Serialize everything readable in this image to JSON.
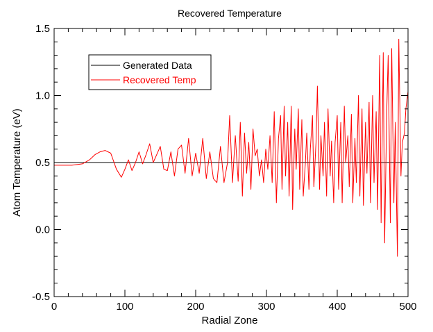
{
  "chart_data": {
    "type": "line",
    "title": "Recovered Temperature",
    "xlabel": "Radial Zone",
    "ylabel": "Atom Temperature (eV)",
    "xlim": [
      0,
      500
    ],
    "ylim": [
      -0.5,
      1.5
    ],
    "x_ticks": [
      0,
      100,
      200,
      300,
      400,
      500
    ],
    "x_tick_labels": [
      "0",
      "100",
      "200",
      "300",
      "400",
      "500"
    ],
    "y_ticks": [
      -0.5,
      0.0,
      0.5,
      1.0,
      1.5
    ],
    "y_tick_labels": [
      "-0.5",
      "0.0",
      "0.5",
      "1.0",
      "1.5"
    ],
    "grid": false,
    "legend_position": "top-left",
    "series": [
      {
        "name": "Generated Data",
        "color": "#000000",
        "x": [
          0,
          500
        ],
        "y": [
          0.5,
          0.5
        ]
      },
      {
        "name": "Recovered Temp",
        "color": "#ff0000",
        "x": [
          0,
          25,
          40,
          50,
          58,
          65,
          72,
          80,
          88,
          95,
          100,
          105,
          110,
          115,
          120,
          125,
          130,
          135,
          140,
          145,
          150,
          155,
          160,
          165,
          170,
          175,
          180,
          185,
          190,
          195,
          200,
          205,
          210,
          215,
          220,
          225,
          230,
          235,
          240,
          245,
          248,
          252,
          256,
          260,
          263,
          266,
          269,
          272,
          275,
          278,
          281,
          284,
          287,
          290,
          293,
          296,
          299,
          302,
          305,
          308,
          311,
          314,
          317,
          320,
          322,
          325,
          327,
          330,
          332,
          335,
          337,
          340,
          342,
          345,
          347,
          350,
          352,
          355,
          357,
          360,
          362,
          365,
          367,
          370,
          372,
          375,
          377,
          380,
          382,
          385,
          387,
          390,
          392,
          395,
          397,
          400,
          402,
          405,
          407,
          410,
          412,
          415,
          417,
          420,
          422,
          425,
          427,
          430,
          432,
          435,
          437,
          440,
          442,
          445,
          447,
          450,
          452,
          455,
          457,
          460,
          462,
          465,
          467,
          470,
          472,
          475,
          477,
          480,
          482,
          485,
          487,
          490,
          492,
          495,
          497,
          500
        ],
        "y": [
          0.48,
          0.48,
          0.49,
          0.52,
          0.56,
          0.58,
          0.59,
          0.57,
          0.45,
          0.39,
          0.45,
          0.52,
          0.44,
          0.5,
          0.58,
          0.49,
          0.56,
          0.64,
          0.5,
          0.56,
          0.62,
          0.45,
          0.44,
          0.58,
          0.4,
          0.6,
          0.63,
          0.42,
          0.68,
          0.4,
          0.57,
          0.42,
          0.68,
          0.38,
          0.58,
          0.38,
          0.35,
          0.62,
          0.35,
          0.5,
          0.85,
          0.35,
          0.7,
          0.36,
          0.8,
          0.25,
          0.72,
          0.42,
          0.65,
          0.3,
          0.75,
          0.55,
          0.6,
          0.4,
          0.52,
          0.35,
          0.6,
          0.45,
          0.7,
          0.35,
          0.88,
          0.2,
          0.68,
          0.85,
          0.3,
          0.92,
          0.4,
          0.8,
          0.25,
          0.92,
          0.15,
          0.75,
          0.45,
          0.9,
          0.3,
          0.82,
          0.25,
          0.5,
          0.72,
          0.3,
          0.6,
          0.85,
          0.32,
          0.65,
          1.07,
          0.3,
          0.7,
          0.4,
          0.8,
          0.25,
          0.9,
          0.4,
          0.66,
          0.2,
          0.65,
          0.85,
          0.3,
          0.8,
          0.2,
          0.92,
          0.5,
          0.7,
          0.32,
          0.86,
          0.2,
          0.68,
          0.35,
          1.0,
          0.25,
          0.9,
          0.18,
          0.8,
          0.42,
          0.95,
          0.2,
          1.0,
          0.35,
          0.88,
          0.15,
          1.3,
          0.05,
          1.32,
          -0.1,
          0.9,
          1.3,
          0.05,
          1.35,
          0.2,
          0.8,
          -0.2,
          1.42,
          0.4,
          0.65,
          0.72,
          0.9,
          1.03
        ]
      }
    ]
  }
}
